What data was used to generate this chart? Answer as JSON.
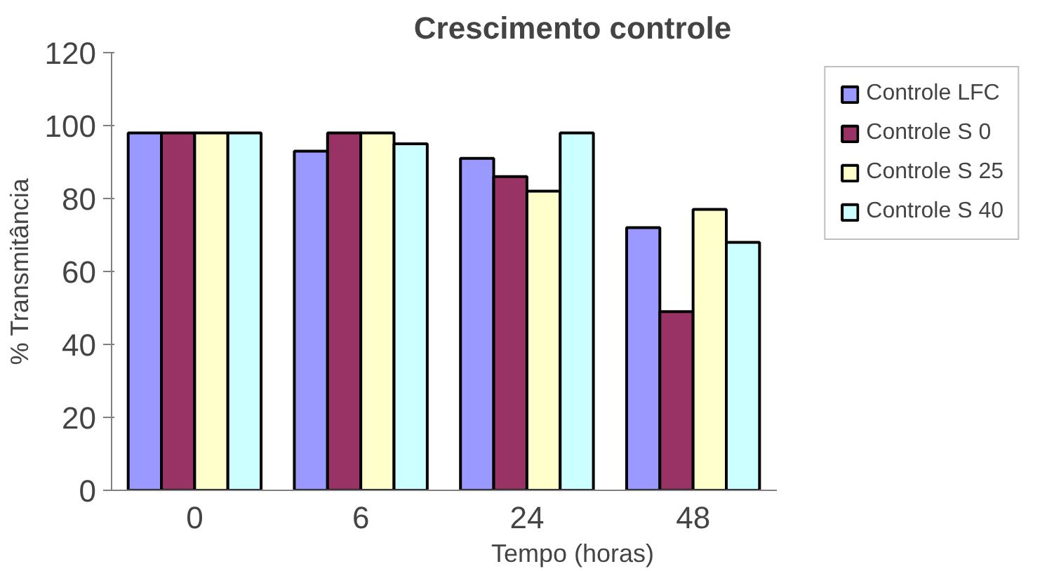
{
  "chart_data": {
    "type": "bar",
    "title": "Crescimento controle",
    "xlabel": "Tempo (horas)",
    "ylabel": "% Transmitância",
    "categories": [
      "0",
      "6",
      "24",
      "48"
    ],
    "series": [
      {
        "name": "Controle LFC",
        "color": "#9999ff",
        "values": [
          98,
          93,
          91,
          72
        ]
      },
      {
        "name": "Controle S 0",
        "color": "#993366",
        "values": [
          98,
          98,
          86,
          49
        ]
      },
      {
        "name": "Controle S 25",
        "color": "#ffffcc",
        "values": [
          98,
          98,
          82,
          77
        ]
      },
      {
        "name": "Controle S 40",
        "color": "#ccffff",
        "values": [
          98,
          95,
          98,
          68
        ]
      }
    ],
    "ylim": [
      0,
      120
    ],
    "yticks": [
      0,
      20,
      40,
      60,
      80,
      100,
      120
    ],
    "grid": false,
    "legend": "top right"
  }
}
